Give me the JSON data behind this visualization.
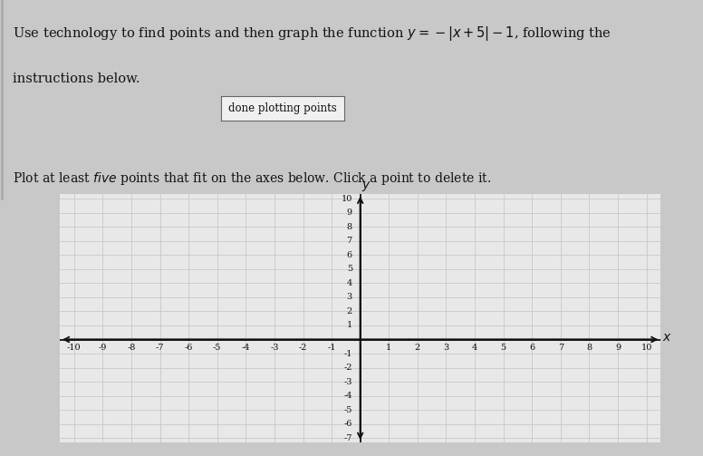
{
  "button_text": "done plotting points",
  "xlim": [
    -10,
    10
  ],
  "ylim": [
    -7,
    10
  ],
  "grid_color": "#c8c8c8",
  "axis_color": "#111111",
  "text_color": "#111111",
  "plot_bg": "#e8e8e8",
  "page_bg": "#c8c8c8",
  "top_bg": "#d4d4d4",
  "white_panel": "#f0f0f0",
  "button_bg": "#f0f0f0",
  "button_border": "#666666",
  "font_size_title": 10.5,
  "font_size_btn": 8.5,
  "font_size_tick": 7
}
